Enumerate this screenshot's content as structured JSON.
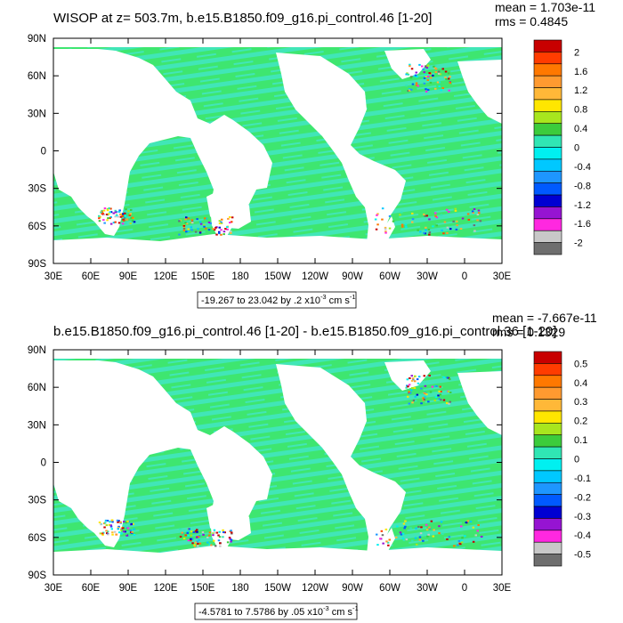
{
  "chart_data": [
    {
      "type": "heatmap",
      "title": "WISOP at z= 503.7m, b.e15.B1850.f09_g16.pi_control.46 [1-20]",
      "mean_label": "mean = 1.703e-11",
      "rms_label": "rms = 0.4845",
      "x_ticks": [
        "30E",
        "60E",
        "90E",
        "120E",
        "150E",
        "180",
        "150W",
        "120W",
        "90W",
        "60W",
        "30W",
        "0",
        "30E"
      ],
      "y_ticks": [
        "90N",
        "60N",
        "30N",
        "0",
        "30S",
        "60S",
        "90S"
      ],
      "xlim": [
        30,
        390
      ],
      "ylim": [
        -90,
        90
      ],
      "colorbar_levels": [
        "2",
        "1.6",
        "1.2",
        "0.8",
        "0.4",
        "0",
        "-0.4",
        "-0.8",
        "-1.2",
        "-1.6",
        "-2"
      ],
      "range_text": "-19.267 to 23.042 by .2 x10",
      "range_exp": "-3",
      "range_units": " cm s",
      "range_units_exp": "-1"
    },
    {
      "type": "heatmap",
      "title": "b.e15.B1850.f09_g16.pi_control.46 [1-20] - b.e15.B1850.f09_g16.pi_control.36 [1-20]",
      "mean_label": "mean = -7.667e-11",
      "rms_label": "rms = 0.1329",
      "x_ticks": [
        "30E",
        "60E",
        "90E",
        "120E",
        "150E",
        "180",
        "150W",
        "120W",
        "90W",
        "60W",
        "30W",
        "0",
        "30E"
      ],
      "y_ticks": [
        "90N",
        "60N",
        "30N",
        "0",
        "30S",
        "60S",
        "90S"
      ],
      "xlim": [
        30,
        390
      ],
      "ylim": [
        -90,
        90
      ],
      "colorbar_levels": [
        "0.5",
        "0.4",
        "0.3",
        "0.2",
        "0.1",
        "0",
        "-0.1",
        "-0.2",
        "-0.3",
        "-0.4",
        "-0.5"
      ],
      "range_text": "-4.5781 to 7.5786 by .05 x10",
      "range_exp": "-3",
      "range_units": " cm s",
      "range_units_exp": "-1"
    }
  ],
  "colorbar_colors": [
    "#c80000",
    "#ff3c00",
    "#ff7800",
    "#ff9a30",
    "#ffb838",
    "#ffe600",
    "#a8e61e",
    "#3ccc3c",
    "#30e6b4",
    "#00f0f0",
    "#00c8ff",
    "#1e96ff",
    "#005aff",
    "#0000d2",
    "#9614d2",
    "#ff28e0",
    "#c8c8c8",
    "#6e6e6e"
  ],
  "colors": {
    "ocean": "#3ee670",
    "ocean_alt": "#41e6b7",
    "land": "#ffffff"
  }
}
